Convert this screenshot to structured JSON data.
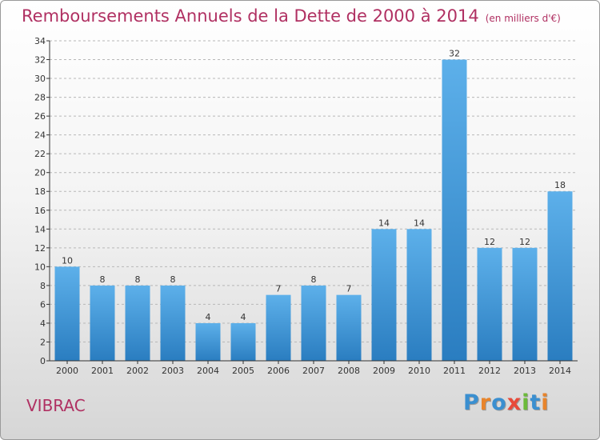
{
  "title": "Remboursements Annuels de la Dette de 2000 à 2014",
  "unit": "(en milliers d'€)",
  "commune": "VIBRAC",
  "logo": {
    "text": "Proxiti",
    "colors": [
      "#3a8fd0",
      "#e8842b",
      "#3a8fd0",
      "#e84a3a",
      "#6cba3a",
      "#3a8fd0",
      "#e8842b"
    ]
  },
  "colors": {
    "accent": "#b03062",
    "bar_top": "#5db0ea",
    "bar_bottom": "#2a7dc0",
    "grid": "#b8b8b8",
    "axis": "#333333"
  },
  "chart_data": {
    "type": "bar",
    "categories": [
      "2000",
      "2001",
      "2002",
      "2003",
      "2004",
      "2005",
      "2006",
      "2007",
      "2008",
      "2009",
      "2010",
      "2011",
      "2012",
      "2013",
      "2014"
    ],
    "values": [
      10,
      8,
      8,
      8,
      4,
      4,
      7,
      8,
      7,
      14,
      14,
      32,
      12,
      12,
      18
    ],
    "data_labels": [
      "10",
      "8",
      "8",
      "8",
      "4",
      "4",
      "7",
      "8",
      "7",
      "14",
      "14",
      "32",
      "12",
      "12",
      "18"
    ],
    "ylim": [
      0,
      34
    ],
    "yticks": [
      0,
      2,
      4,
      6,
      8,
      10,
      12,
      14,
      16,
      18,
      20,
      22,
      24,
      26,
      28,
      30,
      32,
      34
    ],
    "grid": true
  }
}
